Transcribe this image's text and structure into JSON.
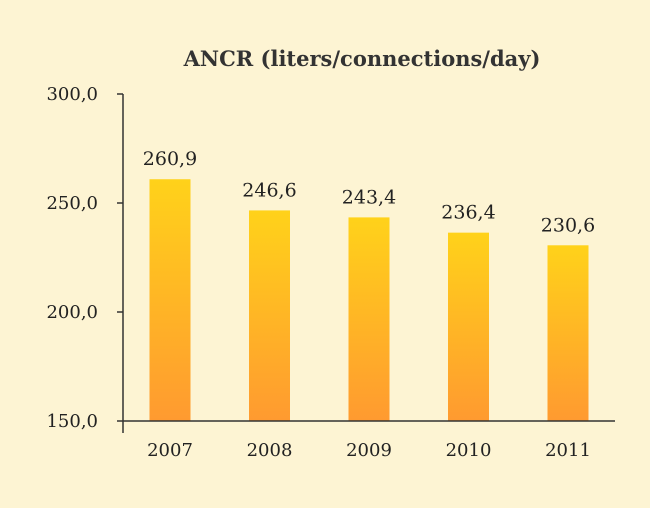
{
  "chart_data": {
    "type": "bar",
    "title": "ANCR (liters/connections/day)",
    "categories": [
      "2007",
      "2008",
      "2009",
      "2010",
      "2011"
    ],
    "values": [
      260.9,
      246.6,
      243.4,
      236.4,
      230.6
    ],
    "value_labels": [
      "260,9",
      "246,6",
      "243,4",
      "236,4",
      "230,6"
    ],
    "ylim": [
      150,
      300
    ],
    "y_ticks": [
      150,
      200,
      250,
      300
    ],
    "y_tick_labels": [
      "150,0",
      "200,0",
      "250,0",
      "300,0"
    ],
    "xlabel": "",
    "ylabel": "",
    "grid": false,
    "legend": "none",
    "colors": {
      "background": "#fdf4d3",
      "bar_top": "#ffd21a",
      "bar_bottom": "#ff9a30",
      "axis": "#333333",
      "text": "#222222"
    }
  }
}
